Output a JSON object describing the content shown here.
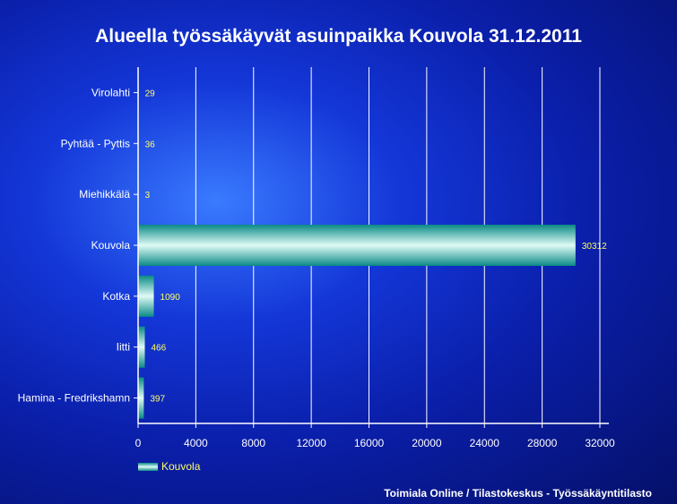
{
  "chart_data": {
    "type": "bar",
    "orientation": "horizontal",
    "title": "Alueella työssäkäyvät asuinpaikka Kouvola 31.12.2011",
    "categories": [
      "Virolahti",
      "Pyhtää - Pyttis",
      "Miehikkälä",
      "Kouvola",
      "Kotka",
      "Iitti",
      "Hamina - Fredrikshamn"
    ],
    "series": [
      {
        "name": "Kouvola",
        "values": [
          29,
          36,
          3,
          30312,
          1090,
          466,
          397
        ]
      }
    ],
    "data_labels": [
      "29",
      "36",
      "3",
      "30312",
      "1090",
      "466",
      "397"
    ],
    "xlim": [
      0,
      32000
    ],
    "xticks": [
      0,
      4000,
      8000,
      12000,
      16000,
      20000,
      24000,
      28000,
      32000
    ],
    "xtick_labels": [
      "0",
      "4000",
      "8000",
      "12000",
      "16000",
      "20000",
      "24000",
      "28000",
      "32000"
    ],
    "grid": "vertical",
    "legend": "bottom-left",
    "colors": {
      "bar": "#0a8a86",
      "bar_highlight": "#dffaf6",
      "data_label": "#ffff66",
      "text": "#ffffff"
    }
  },
  "footer": {
    "source": "Toimiala Online / Tilastokeskus - Työssäkäyntitilasto"
  }
}
